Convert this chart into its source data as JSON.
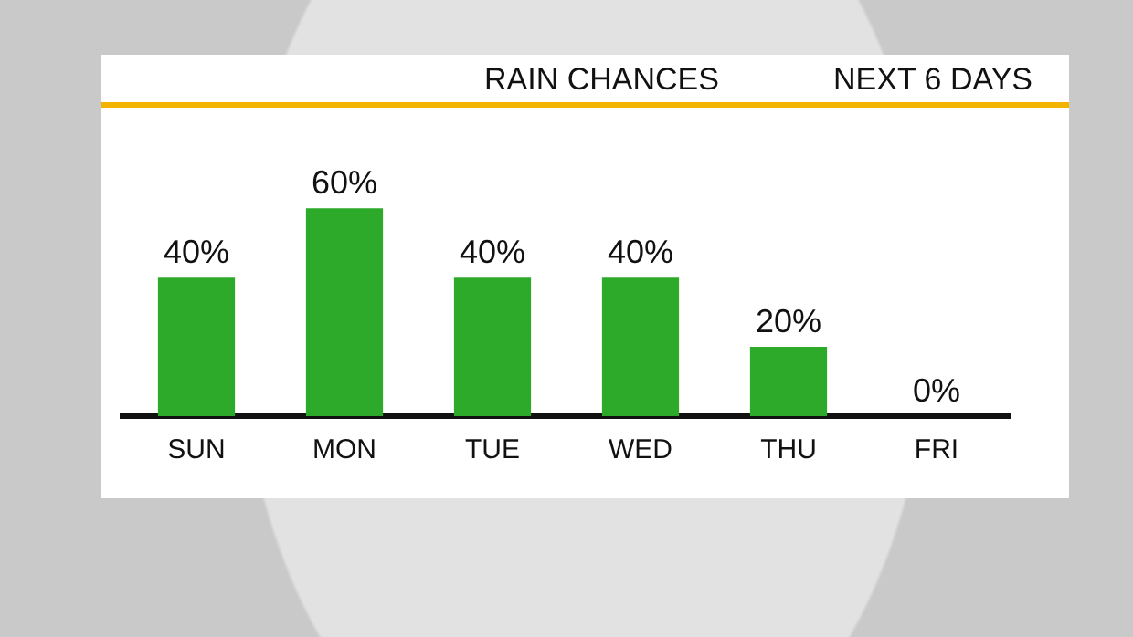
{
  "chart_data": {
    "type": "bar",
    "title": "RAIN CHANCES",
    "subtitle": "NEXT 6 DAYS",
    "categories": [
      "SUN",
      "MON",
      "TUE",
      "WED",
      "THU",
      "FRI"
    ],
    "values": [
      40,
      60,
      40,
      40,
      20,
      0
    ],
    "value_labels": [
      "40%",
      "60%",
      "40%",
      "40%",
      "20%",
      "0%"
    ],
    "color": "#2eaa2a",
    "legend": false
  }
}
